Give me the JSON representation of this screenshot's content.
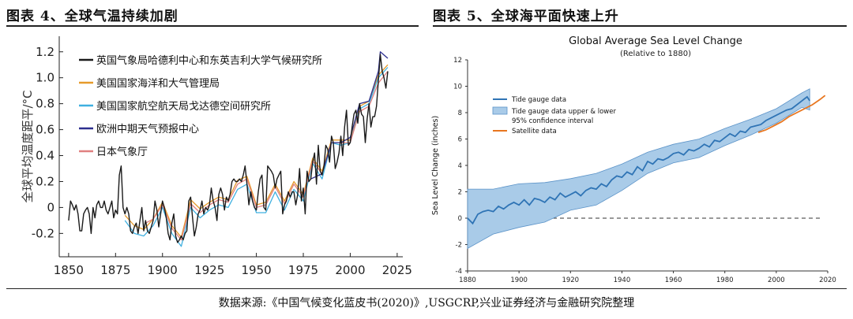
{
  "left_title": "图表 4、全球气温持续加剧",
  "right_title": "图表 5、全球海平面快速上升",
  "source": "数据来源:《中国气候变化蓝皮书(2020)》,USGCRP,兴业证券经济与金融研究院整理",
  "chart_data": [
    {
      "type": "line",
      "title": "",
      "xlabel": "",
      "ylabel": "全球平均温度距平/°C",
      "xlim": [
        1845,
        2028
      ],
      "ylim": [
        -0.38,
        1.32
      ],
      "xticks": [
        "1850",
        "1875",
        "1900",
        "1925",
        "1950",
        "1975",
        "2000",
        "2025"
      ],
      "yticks": [
        "-0.2",
        "0",
        "0.2",
        "0.4",
        "0.6",
        "0.8",
        "1.0",
        "1.2"
      ],
      "series": [
        {
          "name": "英国气象局哈德利中心和东英吉利大学气候研究所",
          "color": "#1a1a1a",
          "x": [
            1850,
            1851,
            1852,
            1853,
            1854,
            1855,
            1856,
            1857,
            1858,
            1859,
            1860,
            1861,
            1862,
            1863,
            1864,
            1865,
            1866,
            1867,
            1868,
            1869,
            1870,
            1871,
            1872,
            1873,
            1874,
            1875,
            1876,
            1877,
            1878,
            1879,
            1880,
            1881,
            1882,
            1883,
            1884,
            1885,
            1886,
            1887,
            1888,
            1889,
            1890,
            1891,
            1892,
            1893,
            1894,
            1895,
            1896,
            1897,
            1898,
            1899,
            1900,
            1901,
            1902,
            1903,
            1904,
            1905,
            1906,
            1907,
            1908,
            1909,
            1910,
            1911,
            1912,
            1913,
            1914,
            1915,
            1916,
            1917,
            1918,
            1919,
            1920,
            1921,
            1922,
            1923,
            1924,
            1925,
            1926,
            1927,
            1928,
            1929,
            1930,
            1931,
            1932,
            1933,
            1934,
            1935,
            1936,
            1937,
            1938,
            1939,
            1940,
            1941,
            1942,
            1943,
            1944,
            1945,
            1946,
            1947,
            1948,
            1949,
            1950,
            1951,
            1952,
            1953,
            1954,
            1955,
            1956,
            1957,
            1958,
            1959,
            1960,
            1961,
            1962,
            1963,
            1964,
            1965,
            1966,
            1967,
            1968,
            1969,
            1970,
            1971,
            1972,
            1973,
            1974,
            1975,
            1976,
            1977,
            1978,
            1979,
            1980,
            1981,
            1982,
            1983,
            1984,
            1985,
            1986,
            1987,
            1988,
            1989,
            1990,
            1991,
            1992,
            1993,
            1994,
            1995,
            1996,
            1997,
            1998,
            1999,
            2000,
            2001,
            2002,
            2003,
            2004,
            2005,
            2006,
            2007,
            2008,
            2009,
            2010,
            2011,
            2012,
            2013,
            2014,
            2015,
            2016,
            2017,
            2018,
            2019,
            2020
          ],
          "y": [
            -0.1,
            0.05,
            0.02,
            -0.02,
            0.02,
            -0.05,
            -0.18,
            -0.18,
            -0.05,
            -0.02,
            0.0,
            -0.05,
            -0.2,
            0.0,
            -0.08,
            0.02,
            0.05,
            0.0,
            0.0,
            0.05,
            -0.02,
            -0.05,
            0.0,
            0.05,
            -0.08,
            -0.02,
            -0.05,
            0.25,
            0.32,
            0.0,
            -0.05,
            0.0,
            -0.05,
            -0.18,
            -0.2,
            -0.15,
            -0.12,
            -0.2,
            -0.1,
            0.0,
            -0.18,
            -0.1,
            -0.18,
            -0.2,
            -0.15,
            -0.1,
            0.05,
            -0.02,
            -0.15,
            -0.05,
            0.05,
            0.0,
            -0.08,
            -0.2,
            -0.25,
            -0.12,
            -0.05,
            -0.22,
            -0.27,
            -0.25,
            -0.22,
            -0.25,
            -0.2,
            -0.18,
            0.05,
            0.08,
            -0.08,
            -0.22,
            -0.15,
            -0.05,
            -0.02,
            0.05,
            -0.05,
            0.0,
            -0.02,
            0.02,
            0.15,
            0.05,
            0.0,
            -0.1,
            0.1,
            0.15,
            0.1,
            -0.02,
            0.08,
            0.05,
            0.1,
            0.2,
            0.22,
            0.2,
            0.2,
            0.22,
            0.2,
            0.25,
            0.32,
            0.18,
            0.02,
            0.12,
            0.05,
            0.0,
            -0.02,
            0.12,
            0.22,
            0.25,
            0.0,
            -0.02,
            0.32,
            0.3,
            0.28,
            0.25,
            0.15,
            0.22,
            0.25,
            0.28,
            -0.05,
            0.02,
            0.05,
            0.12,
            0.08,
            0.12,
            0.12,
            0.02,
            0.1,
            0.3,
            0.05,
            0.15,
            -0.05,
            0.28,
            0.2,
            0.22,
            0.35,
            0.42,
            0.18,
            0.48,
            0.28,
            0.25,
            0.32,
            0.48,
            0.45,
            0.35,
            0.55,
            0.5,
            0.3,
            0.35,
            0.42,
            0.55,
            0.4,
            0.62,
            0.75,
            0.48,
            0.5,
            0.62,
            0.72,
            0.75,
            0.65,
            0.8,
            0.72,
            0.7,
            0.5,
            0.68,
            0.8,
            0.62,
            0.7,
            0.7,
            0.78,
            0.98,
            1.18,
            1.05,
            1.0,
            0.92,
            1.05
          ]
        },
        {
          "name": "美国国家海洋和大气管理局",
          "color": "#e69a2a",
          "x": [
            1880,
            1885,
            1890,
            1895,
            1900,
            1905,
            1910,
            1915,
            1920,
            1925,
            1930,
            1935,
            1940,
            1945,
            1950,
            1955,
            1960,
            1965,
            1970,
            1975,
            1980,
            1985,
            1990,
            1995,
            2000,
            2005,
            2010,
            2015,
            2020
          ],
          "y": [
            -0.06,
            -0.14,
            -0.17,
            -0.09,
            0.04,
            -0.14,
            -0.23,
            0.06,
            -0.01,
            0.04,
            0.08,
            0.06,
            0.21,
            0.24,
            0.02,
            0.04,
            0.18,
            0.05,
            0.2,
            0.1,
            0.38,
            0.28,
            0.52,
            0.52,
            0.52,
            0.78,
            0.82,
            1.02,
            1.1
          ]
        },
        {
          "name": "美国国家航空航天局戈达德空间研究所",
          "color": "#3fb0e0",
          "x": [
            1880,
            1885,
            1890,
            1895,
            1900,
            1905,
            1910,
            1915,
            1920,
            1925,
            1930,
            1935,
            1940,
            1945,
            1950,
            1955,
            1960,
            1965,
            1970,
            1975,
            1980,
            1985,
            1990,
            1995,
            2000,
            2005,
            2010,
            2015,
            2020
          ],
          "y": [
            -0.1,
            -0.2,
            -0.22,
            -0.14,
            0.0,
            -0.2,
            -0.3,
            0.0,
            -0.08,
            -0.02,
            0.02,
            0.0,
            0.14,
            0.18,
            -0.04,
            -0.04,
            0.12,
            -0.02,
            0.14,
            0.05,
            0.34,
            0.22,
            0.5,
            0.48,
            0.5,
            0.76,
            0.8,
            1.0,
            1.08
          ]
        },
        {
          "name": "欧洲中期天气预报中心",
          "color": "#2d2f8f",
          "x": [
            1979,
            1985,
            1990,
            1995,
            2000,
            2005,
            2010,
            2015,
            2016,
            2020
          ],
          "y": [
            0.22,
            0.26,
            0.5,
            0.5,
            0.54,
            0.8,
            0.82,
            1.05,
            1.2,
            1.15
          ]
        },
        {
          "name": "日本气象厅",
          "color": "#e08080",
          "x": [
            1891,
            1895,
            1900,
            1905,
            1910,
            1915,
            1920,
            1925,
            1930,
            1935,
            1940,
            1945,
            1950,
            1955,
            1960,
            1965,
            1970,
            1975,
            1980,
            1985,
            1990,
            1995,
            2000,
            2005,
            2010,
            2015,
            2020
          ],
          "y": [
            -0.12,
            -0.09,
            0.02,
            -0.16,
            -0.25,
            0.03,
            -0.04,
            0.02,
            0.06,
            0.04,
            0.18,
            0.22,
            0.0,
            0.02,
            0.16,
            0.03,
            0.18,
            0.08,
            0.36,
            0.26,
            0.5,
            0.5,
            0.5,
            0.74,
            0.78,
            0.96,
            1.05
          ]
        }
      ]
    },
    {
      "type": "line",
      "title": "Global Average Sea Level Change",
      "subtitle": "(Relative to 1880)",
      "xlabel": "",
      "ylabel": "Sea Level Change (inches)",
      "xlim": [
        1880,
        2020
      ],
      "ylim": [
        -4,
        12
      ],
      "xticks": [
        "1880",
        "1900",
        "1920",
        "1940",
        "1960",
        "1980",
        "2000",
        "2020"
      ],
      "yticks": [
        "-4",
        "-2",
        "0",
        "2",
        "4",
        "6",
        "8",
        "10",
        "12"
      ],
      "baseline": 0,
      "series": [
        {
          "name": "Tide gauge data",
          "color": "#2f74b5",
          "x": [
            1880,
            1882,
            1884,
            1886,
            1888,
            1890,
            1892,
            1894,
            1896,
            1898,
            1900,
            1902,
            1904,
            1906,
            1908,
            1910,
            1912,
            1914,
            1916,
            1918,
            1920,
            1922,
            1924,
            1926,
            1928,
            1930,
            1932,
            1934,
            1936,
            1938,
            1940,
            1942,
            1944,
            1946,
            1948,
            1950,
            1952,
            1954,
            1956,
            1958,
            1960,
            1962,
            1964,
            1966,
            1968,
            1970,
            1972,
            1974,
            1976,
            1978,
            1980,
            1982,
            1984,
            1986,
            1988,
            1990,
            1992,
            1994,
            1996,
            1998,
            2000,
            2002,
            2004,
            2006,
            2008,
            2010,
            2012,
            2013
          ],
          "y": [
            0.0,
            -0.4,
            0.3,
            0.5,
            0.6,
            0.5,
            0.9,
            0.7,
            1.0,
            1.2,
            1.0,
            1.4,
            1.0,
            1.5,
            1.4,
            1.2,
            1.6,
            1.4,
            1.9,
            1.6,
            1.8,
            2.0,
            1.7,
            2.1,
            2.3,
            2.2,
            2.6,
            2.4,
            2.9,
            3.2,
            3.1,
            3.5,
            3.3,
            3.9,
            3.6,
            4.3,
            4.1,
            4.5,
            4.4,
            4.6,
            4.9,
            5.0,
            4.8,
            5.2,
            5.1,
            5.3,
            5.6,
            5.4,
            5.9,
            5.8,
            6.1,
            6.4,
            6.2,
            6.6,
            6.5,
            6.9,
            7.0,
            7.1,
            7.4,
            7.6,
            7.8,
            8.0,
            8.2,
            8.3,
            8.6,
            8.9,
            9.2,
            8.9
          ]
        },
        {
          "name": "Tide gauge data upper & lower 95% confidence interval",
          "color": "#a9cbe8",
          "x": [
            1880,
            1890,
            1900,
            1910,
            1920,
            1930,
            1940,
            1950,
            1960,
            1970,
            1980,
            1990,
            2000,
            2010,
            2013
          ],
          "upper": [
            2.2,
            2.2,
            2.6,
            2.7,
            3.0,
            3.4,
            4.1,
            5.0,
            5.6,
            6.0,
            6.8,
            7.5,
            8.3,
            9.5,
            9.8
          ],
          "lower": [
            -2.3,
            -1.2,
            -0.7,
            -0.3,
            0.6,
            1.0,
            2.1,
            3.4,
            4.2,
            4.6,
            5.5,
            6.3,
            7.2,
            8.4,
            8.2
          ]
        },
        {
          "name": "Satellite data",
          "color": "#e8761f",
          "x": [
            1993,
            1996,
            1999,
            2002,
            2005,
            2008,
            2011,
            2014,
            2017,
            2019
          ],
          "y": [
            6.5,
            6.7,
            7.0,
            7.3,
            7.7,
            8.0,
            8.3,
            8.6,
            9.0,
            9.3
          ]
        }
      ],
      "legend": [
        "Tide gauge data",
        "Tide gauge data upper & lower",
        "95% confidence interval",
        "Satellite data"
      ]
    }
  ]
}
